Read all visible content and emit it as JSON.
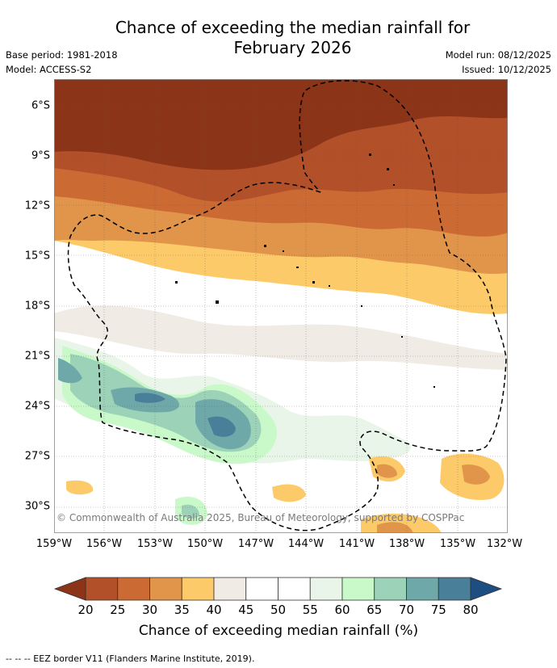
{
  "header": {
    "title_line1": "Chance of exceeding the median rainfall for",
    "title_line2": "February 2026",
    "base_period": "Base period: 1981-2018",
    "model": "Model: ACCESS-S2",
    "model_run": "Model run: 08/12/2025",
    "issued": "Issued: 10/12/2025"
  },
  "map": {
    "lon_labels": [
      "159°W",
      "156°W",
      "153°W",
      "150°W",
      "147°W",
      "144°W",
      "141°W",
      "138°W",
      "135°W",
      "132°W"
    ],
    "lat_labels": [
      "6°S",
      "9°S",
      "12°S",
      "15°S",
      "18°S",
      "21°S",
      "24°S",
      "27°S",
      "30°S"
    ],
    "copyright": "© Commonwealth of Australia 2025, Bureau of Meteorology, supported by COSPPac",
    "eez_line_color": "#000000"
  },
  "colorbar": {
    "ticks": [
      "20",
      "25",
      "30",
      "35",
      "40",
      "45",
      "50",
      "55",
      "60",
      "65",
      "70",
      "75",
      "80"
    ],
    "colors": [
      "#8b3418",
      "#b2502a",
      "#cc6a34",
      "#e0954a",
      "#fdca6a",
      "#f1ebe5",
      "#ffffff",
      "#ffffff",
      "#e8f5e8",
      "#c9f9c9",
      "#9bd2b8",
      "#6fa8a8",
      "#4a7f99",
      "#1d4e82"
    ],
    "label": "Chance of exceeding median rainfall (%)"
  },
  "footnote": "--  --  -- EEZ border V11 (Flanders Marine Institute, 2019)."
}
